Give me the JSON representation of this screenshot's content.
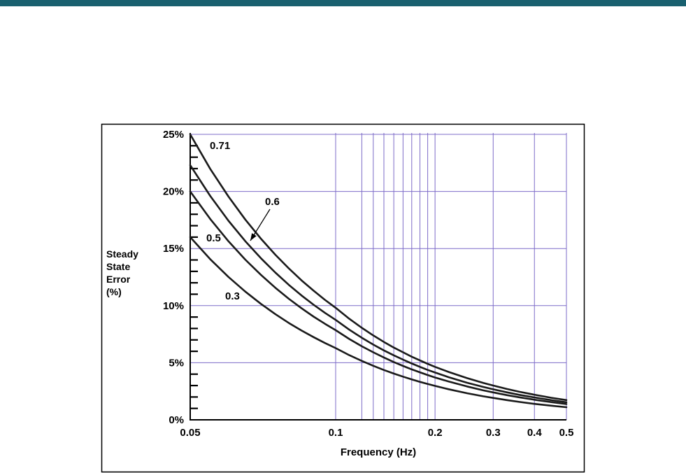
{
  "page": {
    "background": "#ffffff",
    "top_bar": {
      "color": "#19606f",
      "height": 9
    }
  },
  "chart_data": {
    "type": "line",
    "title": "",
    "xlabel": "Frequency (Hz)",
    "ylabel": "Steady State Error (%)",
    "ylabel_lines": [
      "Steady",
      "State",
      "Error",
      "(%)"
    ],
    "x_scale": "log",
    "xlim": [
      0.05,
      0.5
    ],
    "ylim": [
      0,
      25
    ],
    "grid": true,
    "legend_position": "none",
    "grid_color": "#7d6bc8",
    "axis_color": "#000000",
    "curve_color": "#1a1a1a",
    "x_ticks": [
      {
        "value": 0.05,
        "label": "0.05"
      },
      {
        "value": 0.1,
        "label": "0.1"
      },
      {
        "value": 0.2,
        "label": "0.2"
      },
      {
        "value": 0.3,
        "label": "0.3"
      },
      {
        "value": 0.4,
        "label": "0.4"
      },
      {
        "value": 0.5,
        "label": "0.5"
      }
    ],
    "y_ticks": [
      {
        "value": 0,
        "label": "0%"
      },
      {
        "value": 5,
        "label": "5%"
      },
      {
        "value": 10,
        "label": "10%"
      },
      {
        "value": 15,
        "label": "15%"
      },
      {
        "value": 20,
        "label": "20%"
      },
      {
        "value": 25,
        "label": "25%"
      }
    ],
    "x_major_gridlines": [
      0.1,
      0.2,
      0.3,
      0.4,
      0.5
    ],
    "x_minor_gridlines": [
      0.12,
      0.13,
      0.14,
      0.15,
      0.16,
      0.17,
      0.18,
      0.19
    ],
    "y_major_gridlines": [
      5,
      10,
      15,
      20,
      25
    ],
    "y_minor_tick_step": 1,
    "x": [
      0.05,
      0.055,
      0.06,
      0.065,
      0.07,
      0.075,
      0.08,
      0.085,
      0.09,
      0.095,
      0.1,
      0.11,
      0.12,
      0.13,
      0.14,
      0.15,
      0.16,
      0.17,
      0.18,
      0.19,
      0.2,
      0.22,
      0.25,
      0.28,
      0.3,
      0.33,
      0.36,
      0.4,
      0.45,
      0.5
    ],
    "series": [
      {
        "name": "0.71",
        "pointer_arrow": false,
        "values": [
          25.0,
          21.98,
          19.55,
          17.54,
          15.87,
          14.46,
          13.26,
          12.21,
          11.31,
          10.51,
          9.81,
          8.85,
          8.06,
          7.39,
          6.82,
          6.33,
          5.91,
          5.53,
          5.2,
          4.9,
          4.64,
          4.19,
          3.65,
          3.23,
          3.0,
          2.7,
          2.46,
          2.2,
          1.93,
          1.73
        ]
      },
      {
        "name": "0.6",
        "pointer_arrow": true,
        "values": [
          22.3,
          19.61,
          17.43,
          15.65,
          14.16,
          12.9,
          11.82,
          10.89,
          10.08,
          9.37,
          8.75,
          7.89,
          7.19,
          6.59,
          6.08,
          5.65,
          5.27,
          4.93,
          4.64,
          4.37,
          4.14,
          3.73,
          3.25,
          2.88,
          2.67,
          2.41,
          2.19,
          1.96,
          1.72,
          1.54
        ]
      },
      {
        "name": "0.5",
        "pointer_arrow": false,
        "values": [
          20.0,
          17.59,
          15.64,
          14.03,
          12.7,
          11.57,
          10.6,
          9.77,
          9.04,
          8.41,
          7.85,
          7.08,
          6.44,
          5.91,
          5.46,
          5.06,
          4.72,
          4.42,
          4.16,
          3.92,
          3.71,
          3.35,
          2.92,
          2.58,
          2.4,
          2.16,
          1.97,
          1.76,
          1.55,
          1.38
        ]
      },
      {
        "name": "0.3",
        "pointer_arrow": false,
        "values": [
          16.0,
          14.07,
          12.51,
          11.23,
          10.16,
          9.26,
          8.48,
          7.82,
          7.24,
          6.73,
          6.28,
          5.66,
          5.16,
          4.73,
          4.36,
          4.05,
          3.78,
          3.54,
          3.33,
          3.14,
          2.97,
          2.68,
          2.33,
          2.06,
          1.92,
          1.73,
          1.57,
          1.4,
          1.24,
          1.1
        ]
      }
    ]
  }
}
